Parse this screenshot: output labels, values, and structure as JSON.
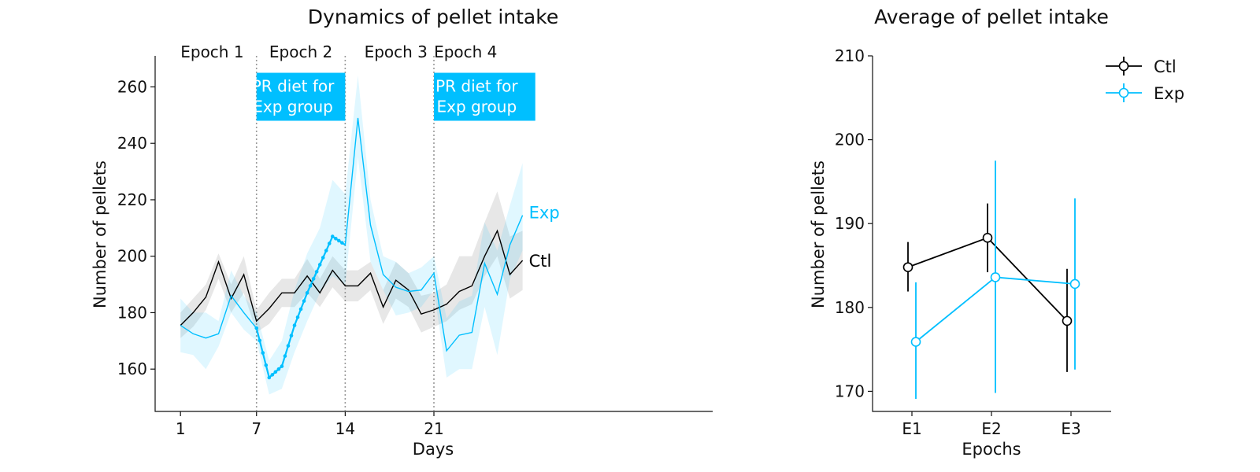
{
  "chart_data": [
    {
      "type": "line",
      "title": "Dynamics of pellet intake",
      "xlabel": "Days",
      "ylabel": "Number of pellets",
      "xlim": [
        -1,
        43
      ],
      "ylim": [
        145,
        271
      ],
      "xticks": [
        1,
        7,
        14,
        21
      ],
      "yticks": [
        160,
        180,
        200,
        220,
        240,
        260
      ],
      "epoch_labels": [
        "Epoch 1",
        "Epoch 2",
        "Epoch 3",
        "Epoch 4"
      ],
      "epoch_label_x": [
        3.5,
        10.5,
        18,
        23.5
      ],
      "epoch_boundaries": [
        7,
        14,
        21
      ],
      "diet_boxes": [
        {
          "x_start": 7,
          "x_end": 14,
          "line1": "PR diet for",
          "line2": "Exp group"
        },
        {
          "x_start": 21,
          "x_end": 29,
          "line1": "PR diet for",
          "line2": "Exp group"
        }
      ],
      "series": [
        {
          "name": "Ctl",
          "color": "#000000",
          "x": [
            1,
            2,
            3,
            4,
            5,
            6,
            7,
            8,
            9,
            10,
            11,
            12,
            13,
            14,
            15,
            16,
            17,
            18,
            19,
            20,
            21,
            22,
            23,
            24,
            25,
            26,
            27,
            28
          ],
          "y": [
            175.5,
            180,
            185.5,
            198,
            185,
            193.5,
            177,
            181.5,
            187,
            187,
            193,
            187,
            195,
            189.5,
            189.5,
            194,
            182,
            191.5,
            188,
            179.5,
            181,
            183,
            187.5,
            189.5,
            200,
            209,
            193.5,
            198.5
          ],
          "y_lower": [
            171,
            175,
            181,
            192,
            180,
            187,
            173,
            176,
            182,
            182,
            187,
            182,
            189,
            184,
            184,
            188,
            176,
            185,
            182,
            173,
            175,
            177,
            181,
            183,
            193,
            200,
            185,
            188
          ],
          "y_upper": [
            180,
            185,
            190,
            201,
            190,
            200,
            181,
            187,
            192,
            192,
            199,
            192,
            200,
            195,
            195,
            198,
            188,
            198,
            194,
            186,
            187,
            190,
            200,
            200,
            212,
            223,
            207,
            209
          ]
        },
        {
          "name": "Exp",
          "color": "#00bfff",
          "x": [
            1,
            2,
            3,
            4,
            5,
            6,
            7,
            8,
            9,
            10,
            11,
            12,
            13,
            14,
            15,
            16,
            17,
            18,
            19,
            20,
            21,
            22,
            23,
            24,
            25,
            26,
            27,
            28
          ],
          "y": [
            175.5,
            172.5,
            171,
            172.5,
            186,
            180,
            174.5,
            157,
            161,
            175.5,
            187,
            197,
            207,
            204,
            249,
            211,
            193.5,
            189,
            187.5,
            188,
            194,
            166.5,
            172,
            173,
            197.5,
            186.5,
            204,
            214.5
          ],
          "y_lower": [
            166,
            165,
            160,
            168,
            180,
            174,
            170,
            151,
            153,
            166,
            177,
            187,
            193,
            190,
            235,
            198,
            188,
            179,
            180,
            182,
            188,
            157,
            160,
            160,
            182,
            165,
            192,
            202
          ],
          "y_upper": [
            185,
            180,
            180,
            177,
            195,
            186,
            180,
            163,
            170,
            188,
            201,
            210,
            227,
            222,
            264,
            220,
            200,
            198,
            194,
            196,
            200,
            178,
            184,
            186,
            212,
            202,
            218,
            233
          ],
          "dotted_segment_x": [
            7,
            14
          ]
        }
      ],
      "end_labels": [
        "Exp",
        "Ctl"
      ]
    },
    {
      "type": "line",
      "title": "Average of pellet intake",
      "xlabel": "Epochs",
      "ylabel": "Number of pellets",
      "categories": [
        "E1",
        "E2",
        "E3"
      ],
      "ylim": [
        167.6,
        210
      ],
      "yticks": [
        170,
        180,
        190,
        200,
        210
      ],
      "legend": "top-right",
      "series": [
        {
          "name": "Ctl",
          "color": "#000000",
          "values": [
            184.8,
            188.3,
            178.4
          ],
          "err_lower": [
            181.9,
            184.2,
            172.3
          ],
          "err_upper": [
            187.8,
            192.4,
            184.6
          ]
        },
        {
          "name": "Exp",
          "color": "#00bfff",
          "values": [
            175.9,
            183.6,
            182.8
          ],
          "err_lower": [
            169.1,
            169.8,
            172.6
          ],
          "err_upper": [
            183.0,
            197.5,
            193.0
          ]
        }
      ]
    }
  ]
}
